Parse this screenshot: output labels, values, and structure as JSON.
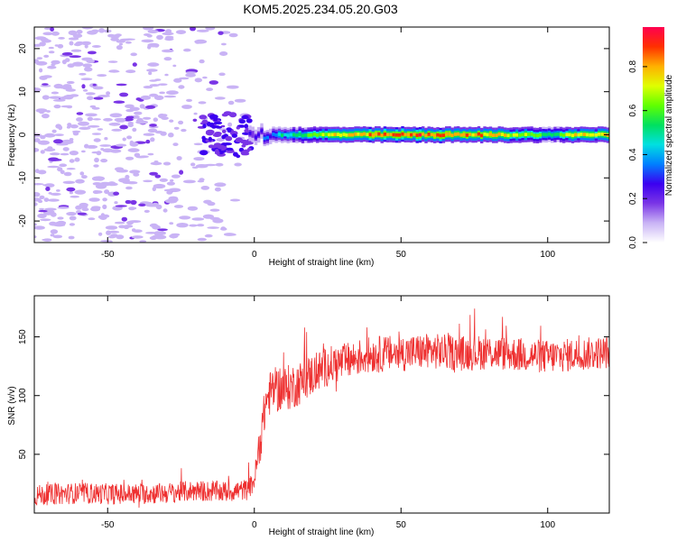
{
  "title": "KOM5.2025.234.05.20.G03",
  "chart_data": [
    {
      "type": "heatmap",
      "name": "spectrogram",
      "xlabel": "Height of straight line (km)",
      "ylabel": "Frequency (Hz)",
      "xlim": [
        -75,
        121
      ],
      "ylim": [
        -25,
        25
      ],
      "xticks": [
        -50,
        0,
        50,
        100
      ],
      "yticks": [
        -20,
        -10,
        0,
        10,
        20
      ],
      "colorbar": {
        "label": "Normalized spectral amplitude",
        "range": [
          0.0,
          0.98
        ],
        "ticks": [
          "0.0",
          "0.2",
          "0.4",
          "0.6",
          "0.8"
        ],
        "colormap": [
          "#ffffff",
          "#c9b3f5",
          "#7a35e6",
          "#3b00f0",
          "#0080ff",
          "#00e0e0",
          "#00e060",
          "#60ff00",
          "#e0ff00",
          "#ffb000",
          "#ff3000",
          "#ff0050"
        ]
      },
      "description_band": "narrow signal band near 0 Hz for heights above 0 km; scattered low-amplitude noise below 0 km",
      "band_amplitude_profile": [
        {
          "x": 0,
          "v": 0.25
        },
        {
          "x": 10,
          "v": 0.45
        },
        {
          "x": 20,
          "v": 0.6
        },
        {
          "x": 30,
          "v": 0.8
        },
        {
          "x": 40,
          "v": 0.85
        },
        {
          "x": 50,
          "v": 0.88
        },
        {
          "x": 60,
          "v": 0.9
        },
        {
          "x": 70,
          "v": 0.85
        },
        {
          "x": 80,
          "v": 0.8
        },
        {
          "x": 90,
          "v": 0.7
        },
        {
          "x": 100,
          "v": 0.55
        },
        {
          "x": 110,
          "v": 0.75
        },
        {
          "x": 121,
          "v": 0.8
        }
      ]
    },
    {
      "type": "line",
      "name": "snr",
      "xlabel": "Height of straight line (km)",
      "ylabel": "SNR (v/v)",
      "xlim": [
        -75,
        121
      ],
      "ylim": [
        0,
        185
      ],
      "xticks": [
        -50,
        0,
        50,
        100
      ],
      "yticks": [
        50,
        100,
        150
      ],
      "color": "#ee3030",
      "series": [
        {
          "name": "SNR",
          "points": [
            [
              -75,
              15
            ],
            [
              -60,
              17
            ],
            [
              -45,
              16
            ],
            [
              -30,
              17
            ],
            [
              -20,
              19
            ],
            [
              -10,
              18
            ],
            [
              -2,
              20
            ],
            [
              0,
              28
            ],
            [
              2,
              60
            ],
            [
              4,
              95
            ],
            [
              6,
              105
            ],
            [
              10,
              105
            ],
            [
              15,
              110
            ],
            [
              20,
              118
            ],
            [
              25,
              125
            ],
            [
              30,
              128
            ],
            [
              35,
              132
            ],
            [
              40,
              135
            ],
            [
              50,
              136
            ],
            [
              60,
              138
            ],
            [
              70,
              136
            ],
            [
              80,
              137
            ],
            [
              90,
              135
            ],
            [
              100,
              133
            ],
            [
              110,
              135
            ],
            [
              121,
              137
            ]
          ],
          "noise_amplitude": [
            [
              -75,
              9
            ],
            [
              0,
              9
            ],
            [
              2,
              18
            ],
            [
              10,
              20
            ],
            [
              30,
              16
            ],
            [
              121,
              14
            ]
          ]
        }
      ]
    }
  ]
}
